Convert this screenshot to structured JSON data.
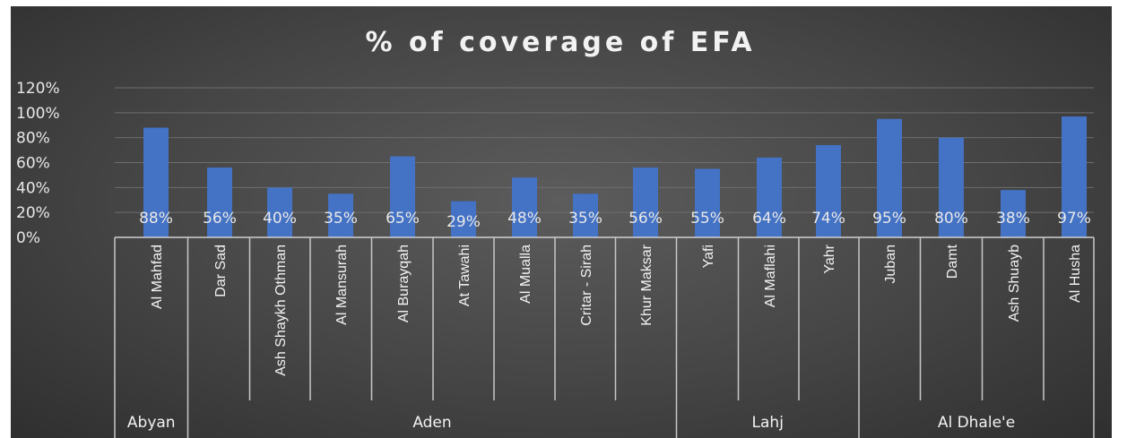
{
  "chart_data": {
    "type": "bar",
    "title": "% of coverage of EFA",
    "ylim": [
      0,
      1.2
    ],
    "yticks": [
      "0%",
      "20%",
      "40%",
      "60%",
      "80%",
      "100%",
      "120%"
    ],
    "grid": true,
    "bar_color": "#4472c4",
    "categories": [
      "Al Mahfad",
      "Dar Sad",
      "Ash Shaykh Othman",
      "Al Mansurah",
      "Al Burayqah",
      "At Tawahi",
      "Al Mualla",
      "Critar - Sirah",
      "Khur Maksar",
      "Yafi",
      "Al Maflahi",
      "Yahr",
      "Juban",
      "Damt",
      "Ash Shuayb",
      "Al Husha"
    ],
    "values": [
      0.88,
      0.56,
      0.4,
      0.35,
      0.65,
      0.29,
      0.48,
      0.35,
      0.56,
      0.55,
      0.64,
      0.74,
      0.95,
      0.8,
      0.38,
      0.97
    ],
    "data_labels": [
      "88%",
      "56%",
      "40%",
      "35%",
      "65%",
      "29%",
      "48%",
      "35%",
      "56%",
      "55%",
      "64%",
      "74%",
      "95%",
      "80%",
      "38%",
      "97%"
    ],
    "groups": [
      {
        "name": "Abyan",
        "count": 1
      },
      {
        "name": "Aden",
        "count": 8
      },
      {
        "name": "Lahj",
        "count": 3
      },
      {
        "name": "Al Dhale'e",
        "count": 4
      }
    ]
  }
}
